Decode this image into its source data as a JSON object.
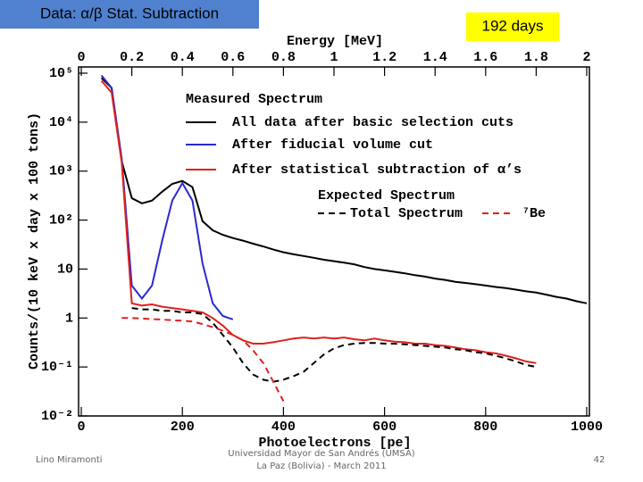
{
  "header": {
    "title": "Data: α/β Stat. Subtraction",
    "badge": "192 days"
  },
  "chart_data": {
    "type": "line",
    "log_y": true,
    "xlabel": "Photoelectrons [pe]",
    "ylabel": "Counts/(10 keV x day x 100 tons)",
    "x2label": "Energy [MeV]",
    "legend_title": "Measured Spectrum",
    "expected_title": "Expected Spectrum",
    "xlim": [
      0,
      1000
    ],
    "xticks": [
      0,
      200,
      400,
      600,
      800,
      1000
    ],
    "x2lim": [
      0,
      2
    ],
    "x2ticks": [
      {
        "value": 0,
        "label": "0"
      },
      0.2,
      0.4,
      0.6,
      0.8,
      1,
      1.2,
      1.4,
      1.6,
      1.8,
      2
    ],
    "ylim": [
      0.01,
      100000
    ],
    "yticks": [
      {
        "value": 100000,
        "label": "10⁵"
      },
      {
        "value": 10000,
        "label": "10⁴"
      },
      {
        "value": 1000,
        "label": "10³"
      },
      {
        "value": 100,
        "label": "10²"
      },
      10,
      1,
      {
        "value": 0.1,
        "label": "10⁻¹"
      },
      {
        "value": 0.01,
        "label": "10⁻²"
      }
    ],
    "x": [
      40,
      60,
      80,
      100,
      120,
      140,
      160,
      180,
      200,
      220,
      240,
      260,
      280,
      300,
      320,
      340,
      360,
      380,
      400,
      420,
      440,
      460,
      480,
      500,
      520,
      540,
      560,
      580,
      600,
      620,
      640,
      660,
      680,
      700,
      720,
      740,
      760,
      780,
      800,
      820,
      840,
      860,
      880,
      900,
      920,
      940,
      960,
      980,
      1000
    ],
    "series": [
      {
        "name": "All data after basic selection cuts",
        "color": "#000000",
        "style": "solid",
        "values": [
          80000,
          50000,
          1600,
          280,
          220,
          250,
          380,
          550,
          630,
          470,
          95,
          62,
          50,
          43,
          38,
          33,
          29,
          25,
          22,
          20,
          18.5,
          17,
          15.5,
          14.5,
          13.5,
          12.5,
          11,
          10,
          9.4,
          8.8,
          8.2,
          7.5,
          7,
          6.4,
          6,
          5.5,
          5.2,
          4.9,
          4.6,
          4.3,
          4.1,
          3.8,
          3.5,
          3.3,
          3,
          2.7,
          2.5,
          2.2,
          2.0
        ]
      },
      {
        "name": "After fiducial volume cut",
        "color": "#2a2ad0",
        "style": "solid",
        "values": [
          90000,
          50000,
          1800,
          4.6,
          2.5,
          4.6,
          38,
          250,
          570,
          250,
          13,
          2,
          1.1,
          0.94,
          null,
          null,
          null,
          null,
          null,
          null,
          null,
          null,
          null,
          null,
          null,
          null,
          null,
          null,
          null,
          null,
          null,
          null,
          null,
          null,
          null,
          null,
          null,
          null,
          null,
          null,
          null,
          null,
          null,
          null,
          null,
          null,
          null,
          null,
          null
        ]
      },
      {
        "name": "After statistical subtraction of α’s",
        "color": "#e02020",
        "style": "solid",
        "values": [
          70000,
          40000,
          1500,
          2,
          1.8,
          1.9,
          1.7,
          1.6,
          1.5,
          1.4,
          1.3,
          1.0,
          0.7,
          0.45,
          0.35,
          0.3,
          0.3,
          0.32,
          0.35,
          0.38,
          0.4,
          0.38,
          0.4,
          0.38,
          0.4,
          0.37,
          0.35,
          0.38,
          0.35,
          0.33,
          0.32,
          0.3,
          0.3,
          0.28,
          0.27,
          0.25,
          0.23,
          0.22,
          0.2,
          0.19,
          0.17,
          0.15,
          0.13,
          0.12,
          null,
          null,
          null,
          null,
          null
        ]
      },
      {
        "name": "Total Spectrum",
        "color": "#000000",
        "style": "dashed",
        "values": [
          null,
          null,
          null,
          1.6,
          1.5,
          1.5,
          1.4,
          1.4,
          1.3,
          1.3,
          1.2,
          0.8,
          0.45,
          0.25,
          0.12,
          0.07,
          0.055,
          0.05,
          0.055,
          0.065,
          0.08,
          0.12,
          0.18,
          0.24,
          0.28,
          0.3,
          0.31,
          0.31,
          0.3,
          0.3,
          0.29,
          0.28,
          0.27,
          0.26,
          0.25,
          0.23,
          0.22,
          0.2,
          0.19,
          0.17,
          0.15,
          0.13,
          0.11,
          0.1,
          null,
          null,
          null,
          null,
          null
        ]
      },
      {
        "name": "⁷Be",
        "color": "#e02020",
        "style": "dashed",
        "values": [
          null,
          null,
          1.0,
          1.0,
          0.98,
          0.95,
          0.93,
          0.9,
          0.88,
          0.85,
          0.75,
          0.65,
          0.55,
          0.45,
          0.35,
          0.22,
          0.12,
          0.05,
          0.02,
          null,
          null,
          null,
          null,
          null,
          null,
          null,
          null,
          null,
          null,
          null,
          null,
          null,
          null,
          null,
          null,
          null,
          null,
          null,
          null,
          null,
          null,
          null,
          null,
          null,
          null,
          null,
          null,
          null,
          null
        ]
      }
    ]
  },
  "footer": {
    "author": "Lino Miramonti",
    "venue": "Universidad Mayor de San Andrés (UMSA)",
    "place": "La Paz (Bolivia) - March 2011",
    "page": "42"
  }
}
